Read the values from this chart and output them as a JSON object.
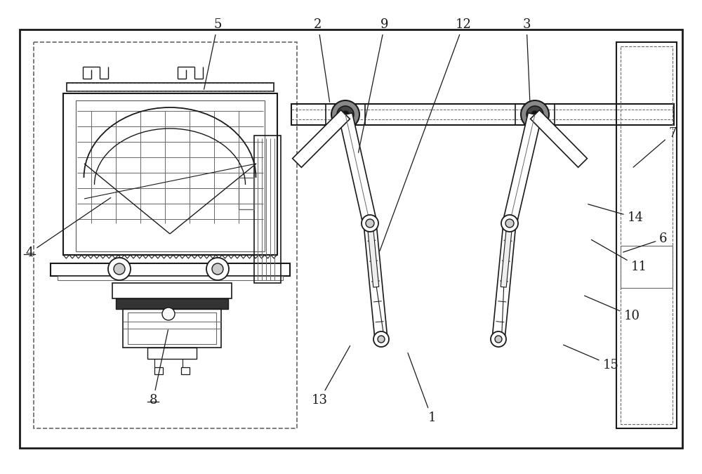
{
  "bg_color": "#ffffff",
  "lc": "#1a1a1a",
  "llc": "#666666",
  "fig_width": 10.0,
  "fig_height": 6.75,
  "dpi": 100
}
